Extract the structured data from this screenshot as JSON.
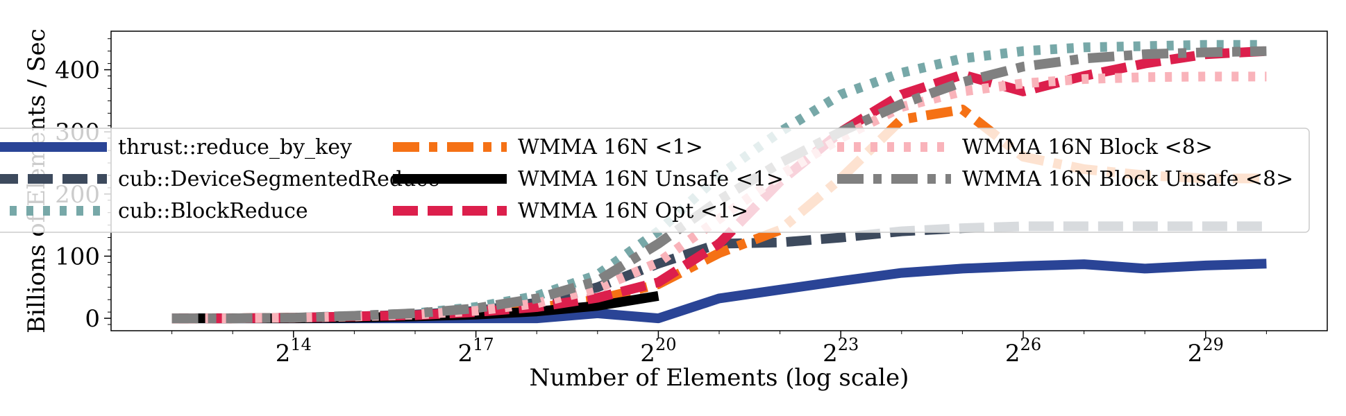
{
  "chart_data": {
    "type": "line",
    "title": "",
    "xlabel": "Number of Elements (log scale)",
    "ylabel": "Billions of Elements / Sec",
    "x_scale": "log2",
    "xlim": [
      2048,
      2147483648
    ],
    "ylim": [
      -20,
      462
    ],
    "x_ticks": [
      {
        "value": 16384,
        "base": "2",
        "exp": "14"
      },
      {
        "value": 131072,
        "base": "2",
        "exp": "17"
      },
      {
        "value": 1048576,
        "base": "2",
        "exp": "20"
      },
      {
        "value": 8388608,
        "base": "2",
        "exp": "23"
      },
      {
        "value": 67108864,
        "base": "2",
        "exp": "26"
      },
      {
        "value": 536870912,
        "base": "2",
        "exp": "29"
      }
    ],
    "y_ticks": [
      0,
      100,
      200,
      300,
      400
    ],
    "grid": false,
    "legend_position": "center",
    "series": [
      {
        "name": "thrust::reduce_by_key",
        "color": "#2a4496",
        "dash": "solid",
        "x": [
          4096,
          8192,
          16384,
          32768,
          65536,
          131072,
          262144,
          524288,
          1048576,
          2097152,
          4194304,
          8388608,
          16777216,
          33554432,
          67108864,
          134217728,
          268435456,
          536870912,
          1073741824
        ],
        "y": [
          0,
          0,
          0,
          0,
          0,
          0,
          0,
          8,
          0,
          32,
          46,
          60,
          73,
          80,
          84,
          87,
          80,
          85,
          88
        ]
      },
      {
        "name": "cub::DeviceSegmentedReduce",
        "color": "#3d4a5d",
        "dash": "dashed",
        "x": [
          4096,
          8192,
          16384,
          32768,
          65536,
          131072,
          262144,
          524288,
          1048576,
          2097152,
          4194304,
          8388608,
          16777216,
          33554432,
          67108864,
          134217728,
          268435456,
          536870912,
          1073741824
        ],
        "y": [
          0,
          0,
          1,
          3,
          6,
          12,
          25,
          50,
          88,
          120,
          122,
          130,
          140,
          145,
          148,
          148,
          148,
          148,
          148
        ]
      },
      {
        "name": "cub::BlockReduce",
        "color": "#77a8a8",
        "dash": "dotted",
        "x": [
          4096,
          8192,
          16384,
          32768,
          65536,
          131072,
          262144,
          524288,
          1048576,
          2097152,
          4194304,
          8388608,
          16777216,
          33554432,
          67108864,
          134217728,
          268435456,
          536870912,
          1073741824
        ],
        "y": [
          0,
          0,
          1,
          4,
          8,
          18,
          36,
          70,
          140,
          230,
          300,
          360,
          395,
          418,
          430,
          436,
          438,
          440,
          440
        ]
      },
      {
        "name": "WMMA 16N <1>",
        "color": "#f57115",
        "dash": "dashdot",
        "x": [
          4096,
          8192,
          16384,
          32768,
          65536,
          131072,
          262144,
          524288,
          1048576,
          2097152,
          4194304,
          8388608,
          16777216,
          33554432,
          67108864,
          134217728,
          268435456,
          536870912,
          1073741824
        ],
        "y": [
          0,
          0,
          1,
          3,
          5,
          9,
          17,
          30,
          55,
          105,
          142,
          225,
          320,
          336,
          260,
          240,
          230,
          225,
          225
        ]
      },
      {
        "name": "WMMA 16N Unsafe <1>",
        "color": "#000000",
        "dash": "solid",
        "x": [
          4096,
          8192,
          16384,
          32768,
          65536,
          131072,
          262144,
          524288,
          1048576
        ],
        "y": [
          0,
          0,
          0,
          1,
          3,
          6,
          11,
          20,
          36
        ]
      },
      {
        "name": "WMMA 16N Opt <1>",
        "color": "#dc1f4c",
        "dash": "dashed",
        "x": [
          4096,
          8192,
          16384,
          32768,
          65536,
          131072,
          262144,
          524288,
          1048576,
          2097152,
          4194304,
          8388608,
          16777216,
          33554432,
          67108864,
          134217728,
          268435456,
          536870912,
          1073741824
        ],
        "y": [
          0,
          0,
          1,
          3,
          5,
          10,
          18,
          33,
          58,
          120,
          220,
          300,
          360,
          392,
          365,
          390,
          410,
          425,
          430
        ]
      },
      {
        "name": "WMMA 16N Block <8>",
        "color": "#f9b3ba",
        "dash": "dotted",
        "x": [
          4096,
          8192,
          16384,
          32768,
          65536,
          131072,
          262144,
          524288,
          1048576,
          2097152,
          4194304,
          8388608,
          16777216,
          33554432,
          67108864,
          134217728,
          268435456,
          536870912,
          1073741824
        ],
        "y": [
          0,
          0,
          1,
          3,
          6,
          12,
          24,
          48,
          90,
          160,
          230,
          290,
          340,
          365,
          378,
          385,
          388,
          389,
          389
        ]
      },
      {
        "name": "WMMA 16N Block Unsafe <8>",
        "color": "#808080",
        "dash": "dashdot",
        "x": [
          4096,
          8192,
          16384,
          32768,
          65536,
          131072,
          262144,
          524288,
          1048576,
          2097152,
          4194304,
          8388608,
          16777216,
          33554432,
          67108864,
          134217728,
          268435456,
          536870912,
          1073741824
        ],
        "y": [
          0,
          0,
          1,
          4,
          8,
          16,
          32,
          60,
          120,
          190,
          250,
          300,
          345,
          380,
          405,
          418,
          425,
          428,
          430
        ]
      }
    ]
  }
}
